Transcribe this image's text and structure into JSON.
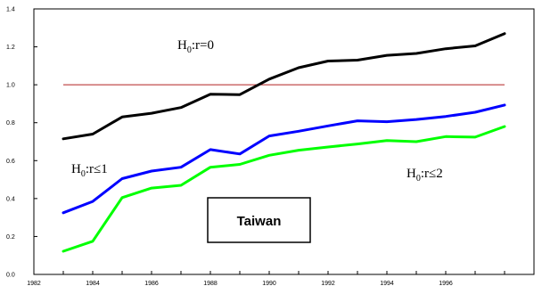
{
  "chart_data": {
    "type": "line",
    "x": [
      1983,
      1984,
      1985,
      1986,
      1987,
      1988,
      1989,
      1990,
      1991,
      1992,
      1993,
      1994,
      1995,
      1996,
      1997,
      1998
    ],
    "x_tick_labels": [
      "1982",
      "1984",
      "1986",
      "1988",
      "1990",
      "1992",
      "1994",
      "1996"
    ],
    "x_tick_values": [
      1982,
      1984,
      1986,
      1988,
      1990,
      1992,
      1994,
      1996
    ],
    "xlim": [
      1982,
      1999
    ],
    "y_tick_labels": [
      "0.0",
      "0.2",
      "0.4",
      "0.6",
      "0.8",
      "1.0",
      "1.2",
      "1.4"
    ],
    "y_tick_values": [
      0.0,
      0.2,
      0.4,
      0.6,
      0.8,
      1.0,
      1.2,
      1.4
    ],
    "ylim": [
      0,
      1.4
    ],
    "reference_line": {
      "y": 1.0,
      "color": "#b22222"
    },
    "series": [
      {
        "color": "#000000",
        "values": [
          0.715,
          0.74,
          0.83,
          0.85,
          0.88,
          0.95,
          0.948,
          1.03,
          1.09,
          1.125,
          1.13,
          1.155,
          1.165,
          1.19,
          1.205,
          1.27
        ]
      },
      {
        "color": "#0000ff",
        "values": [
          0.325,
          0.385,
          0.505,
          0.545,
          0.565,
          0.658,
          0.635,
          0.73,
          0.755,
          0.783,
          0.81,
          0.805,
          0.817,
          0.833,
          0.855,
          0.893
        ]
      },
      {
        "color": "#00ff00",
        "values": [
          0.122,
          0.175,
          0.405,
          0.455,
          0.47,
          0.565,
          0.58,
          0.628,
          0.655,
          0.672,
          0.688,
          0.706,
          0.7,
          0.727,
          0.724,
          0.78
        ]
      }
    ],
    "annotations": [
      {
        "id": "h0-r0",
        "main": "H",
        "sub": "0",
        "rest": ":r=0"
      },
      {
        "id": "h0-r1",
        "main": "H",
        "sub": "0",
        "rest": ":r≤1"
      },
      {
        "id": "h0-r2",
        "main": "H",
        "sub": "0",
        "rest": ":r≤2"
      }
    ],
    "box_label": "Taiwan",
    "grid": false
  }
}
